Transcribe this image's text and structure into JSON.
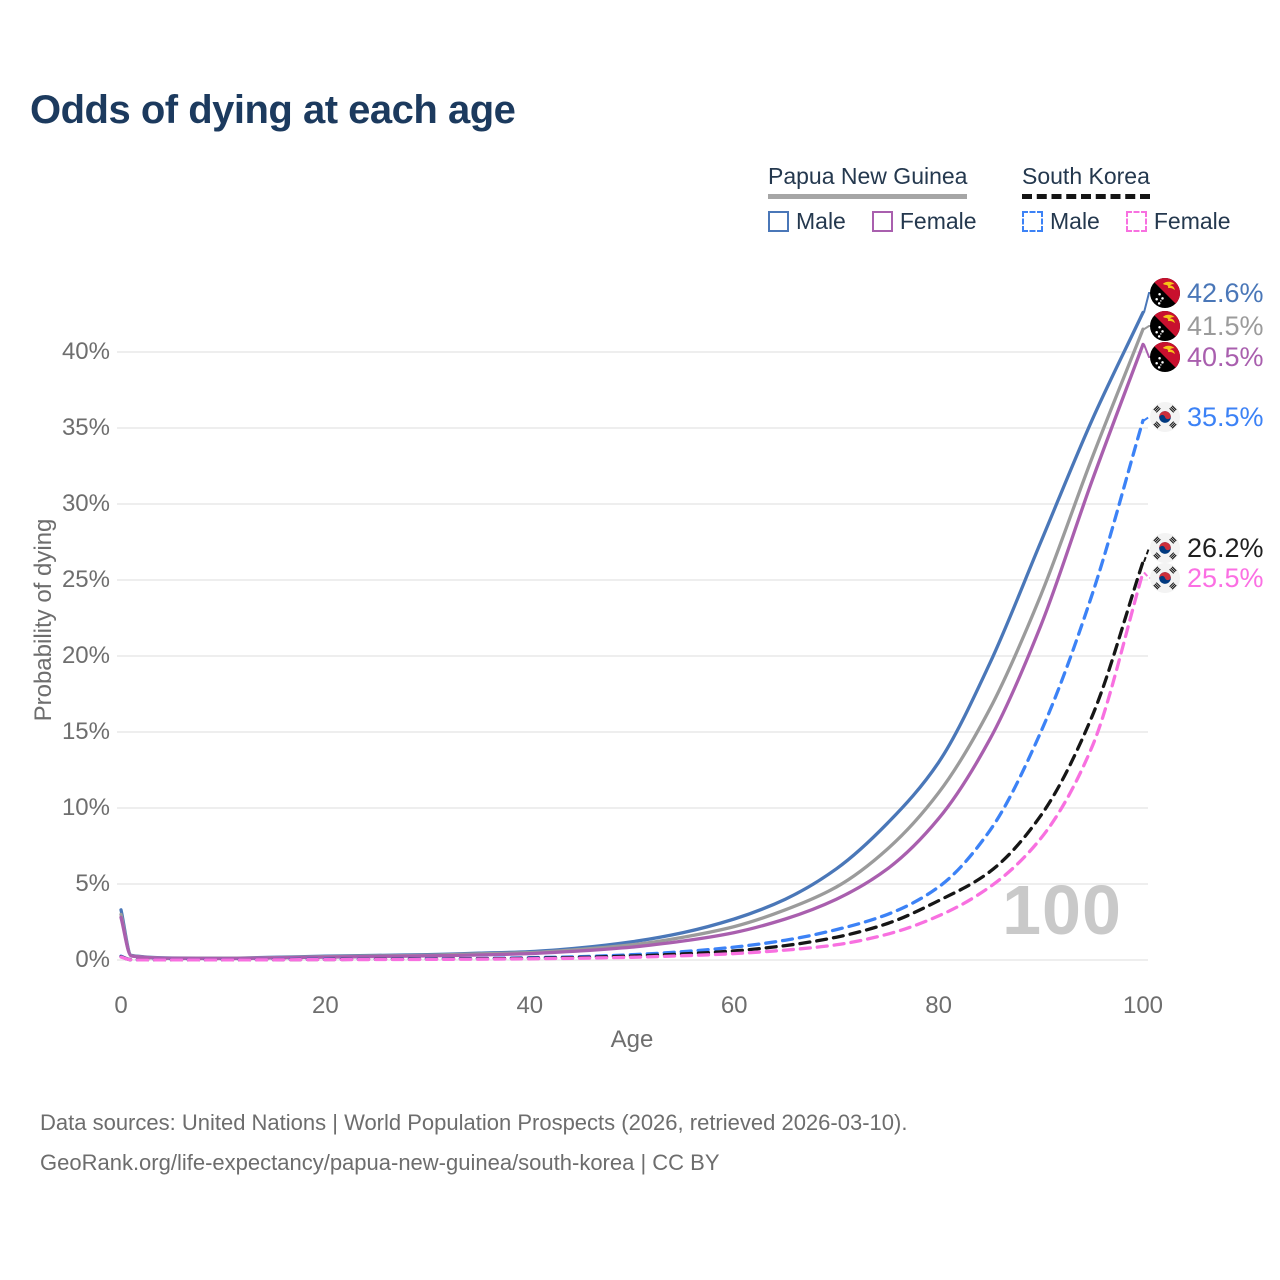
{
  "title": "Odds of dying at each age",
  "legend": {
    "groups": [
      {
        "label": "Papua New Guinea",
        "line_style": "solid",
        "items": [
          {
            "label": "Male",
            "color": "#4a77b8",
            "dash": false
          },
          {
            "label": "Female",
            "color": "#a95fae",
            "dash": false
          }
        ]
      },
      {
        "label": "South Korea",
        "line_style": "dashed",
        "items": [
          {
            "label": "Male",
            "color": "#3c82f6",
            "dash": true
          },
          {
            "label": "Female",
            "color": "#f870e0",
            "dash": true
          }
        ]
      }
    ]
  },
  "chart_data": {
    "type": "line",
    "xlabel": "Age",
    "ylabel": "Probability of dying",
    "annotation": "100",
    "xlim": [
      0,
      100
    ],
    "ylim": [
      0,
      44
    ],
    "grid": true,
    "x_ticks": [
      {
        "value": 0,
        "label": "0"
      },
      {
        "value": 20,
        "label": "20"
      },
      {
        "value": 40,
        "label": "40"
      },
      {
        "value": 60,
        "label": "60"
      },
      {
        "value": 80,
        "label": "80"
      },
      {
        "value": 100,
        "label": "100"
      }
    ],
    "y_ticks": [
      {
        "value": 0,
        "label": "0%"
      },
      {
        "value": 5,
        "label": "5%"
      },
      {
        "value": 10,
        "label": "10%"
      },
      {
        "value": 15,
        "label": "15%"
      },
      {
        "value": 20,
        "label": "20%"
      },
      {
        "value": 25,
        "label": "25%"
      },
      {
        "value": 30,
        "label": "30%"
      },
      {
        "value": 35,
        "label": "35%"
      },
      {
        "value": 40,
        "label": "40%"
      }
    ],
    "ages": [
      0,
      1,
      5,
      10,
      15,
      20,
      25,
      30,
      35,
      40,
      45,
      50,
      55,
      60,
      65,
      70,
      75,
      80,
      85,
      90,
      95,
      100
    ],
    "series": [
      {
        "id": "png-male",
        "country": "Papua New Guinea",
        "sex": "Male",
        "flag": "pg",
        "color": "#4a77b8",
        "dashed": false,
        "end_label": "42.6%",
        "end_label_color": "#4a77b8",
        "values": [
          3.3,
          0.3,
          0.13,
          0.12,
          0.18,
          0.25,
          0.3,
          0.35,
          0.45,
          0.55,
          0.8,
          1.2,
          1.8,
          2.7,
          4.0,
          6.0,
          9.0,
          13.0,
          19.5,
          27.5,
          35.5,
          42.6
        ]
      },
      {
        "id": "png-combined",
        "country": "Papua New Guinea",
        "sex": "",
        "flag": "pg",
        "color": "#9b9b9b",
        "dashed": false,
        "end_label": "41.5%",
        "end_label_color": "#9b9b9b",
        "values": [
          3.0,
          0.28,
          0.12,
          0.11,
          0.16,
          0.22,
          0.27,
          0.31,
          0.4,
          0.48,
          0.7,
          1.0,
          1.5,
          2.2,
          3.3,
          4.8,
          7.3,
          11.0,
          16.5,
          24.0,
          33.0,
          41.5
        ]
      },
      {
        "id": "png-female",
        "country": "Papua New Guinea",
        "sex": "Female",
        "flag": "pg",
        "color": "#a95fae",
        "dashed": false,
        "end_label": "40.5%",
        "end_label_color": "#a95fae",
        "values": [
          2.8,
          0.26,
          0.11,
          0.1,
          0.14,
          0.19,
          0.23,
          0.27,
          0.33,
          0.42,
          0.6,
          0.85,
          1.25,
          1.8,
          2.7,
          4.0,
          6.0,
          9.3,
          14.5,
          22.0,
          31.5,
          40.5
        ]
      },
      {
        "id": "kor-male",
        "country": "South Korea",
        "sex": "Male",
        "flag": "kr",
        "color": "#3c82f6",
        "dashed": true,
        "end_label": "35.5%",
        "end_label_color": "#3c82f6",
        "values": [
          0.25,
          0.02,
          0.01,
          0.01,
          0.03,
          0.05,
          0.06,
          0.08,
          0.1,
          0.15,
          0.22,
          0.35,
          0.55,
          0.85,
          1.3,
          2.0,
          3.0,
          4.8,
          8.5,
          15.0,
          24.0,
          35.5
        ]
      },
      {
        "id": "kor-combined",
        "country": "South Korea",
        "sex": "",
        "flag": "kr",
        "color": "#161616",
        "dashed": true,
        "end_label": "26.2%",
        "end_label_color": "#1f1f1f",
        "values": [
          0.22,
          0.018,
          0.009,
          0.009,
          0.02,
          0.035,
          0.045,
          0.06,
          0.08,
          0.11,
          0.17,
          0.26,
          0.4,
          0.6,
          0.95,
          1.5,
          2.4,
          3.9,
          5.8,
          9.5,
          16.0,
          26.2
        ]
      },
      {
        "id": "kor-female",
        "country": "South Korea",
        "sex": "Female",
        "flag": "kr",
        "color": "#f870e0",
        "dashed": true,
        "end_label": "25.5%",
        "end_label_color": "#fb6fe3",
        "values": [
          0.2,
          0.016,
          0.007,
          0.008,
          0.015,
          0.025,
          0.03,
          0.04,
          0.055,
          0.08,
          0.12,
          0.18,
          0.28,
          0.42,
          0.65,
          1.0,
          1.7,
          2.9,
          4.8,
          8.0,
          14.0,
          25.5
        ]
      }
    ]
  },
  "footer": {
    "line1": "Data sources: United Nations | World Population Prospects (2026, retrieved 2026-03-10).",
    "line2": "GeoRank.org/life-expectancy/papua-new-guinea/south-korea | CC BY"
  }
}
